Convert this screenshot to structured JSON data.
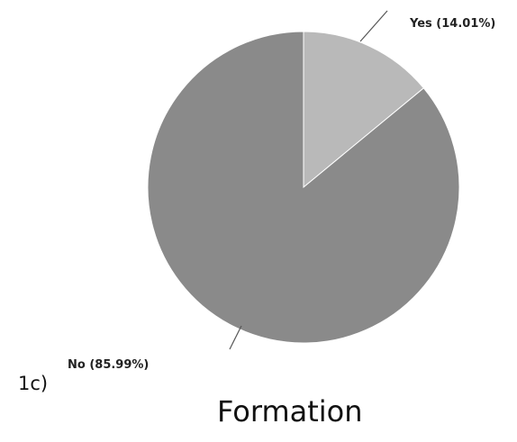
{
  "panel_label": "1c)",
  "chart_data": {
    "type": "pie",
    "title": "Formation",
    "categories": [
      "Yes",
      "No"
    ],
    "values": [
      14.01,
      85.99
    ],
    "labels": [
      "Yes (14.01%)",
      "No (85.99%)"
    ],
    "colors": [
      "#b9b9b9",
      "#8a8a8a"
    ],
    "start_angle": 0,
    "direction": "clockwise",
    "legend": "none"
  }
}
